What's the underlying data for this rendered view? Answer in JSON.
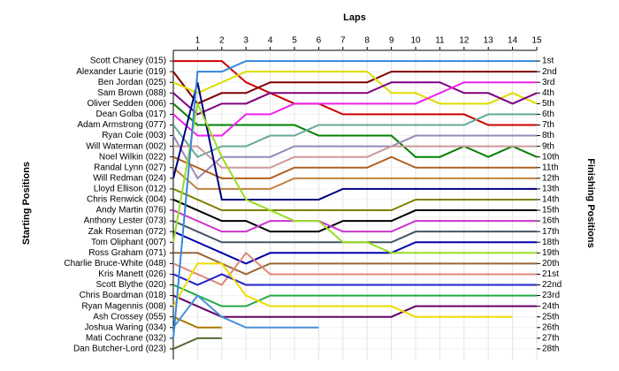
{
  "chart_data": {
    "type": "line",
    "title": "Laps",
    "ylabel": "Starting Positions",
    "y2label": "Finishing Positions",
    "x": [
      0,
      1,
      2,
      3,
      4,
      5,
      6,
      7,
      8,
      9,
      10,
      11,
      12,
      13,
      14,
      15
    ],
    "xlim": [
      0,
      15
    ],
    "xticks": [
      1,
      2,
      3,
      4,
      5,
      6,
      7,
      8,
      9,
      10,
      11,
      12,
      13,
      14,
      15
    ],
    "ylim": [
      29,
      0
    ],
    "yticks": [
      {
        "value": 1,
        "label": "1st"
      },
      {
        "value": 2,
        "label": "2nd"
      },
      {
        "value": 3,
        "label": "3rd"
      },
      {
        "value": 4,
        "label": "4th"
      },
      {
        "value": 5,
        "label": "5th"
      },
      {
        "value": 6,
        "label": "6th"
      },
      {
        "value": 7,
        "label": "7th"
      },
      {
        "value": 8,
        "label": "8th"
      },
      {
        "value": 9,
        "label": "9th"
      },
      {
        "value": 10,
        "label": "10th"
      },
      {
        "value": 11,
        "label": "11th"
      },
      {
        "value": 12,
        "label": "12th"
      },
      {
        "value": 13,
        "label": "13th"
      },
      {
        "value": 14,
        "label": "14th"
      },
      {
        "value": 15,
        "label": "15th"
      },
      {
        "value": 16,
        "label": "16th"
      },
      {
        "value": 17,
        "label": "17th"
      },
      {
        "value": 18,
        "label": "18th"
      },
      {
        "value": 19,
        "label": "19th"
      },
      {
        "value": 20,
        "label": "20th"
      },
      {
        "value": 21,
        "label": "21st"
      },
      {
        "value": 22,
        "label": "22nd"
      },
      {
        "value": 23,
        "label": "23rd"
      },
      {
        "value": 24,
        "label": "24th"
      },
      {
        "value": 25,
        "label": "25th"
      },
      {
        "value": 26,
        "label": "26th"
      },
      {
        "value": 27,
        "label": "27th"
      },
      {
        "value": 28,
        "label": "28th"
      }
    ],
    "grid": true,
    "series": [
      {
        "name": "Scott Chaney (015)",
        "color": "#cc0000",
        "values": [
          1,
          1,
          1,
          3,
          4,
          5,
          5,
          6,
          6,
          6,
          6,
          6,
          6,
          7,
          7,
          7
        ]
      },
      {
        "name": "Alexander Laurie (019)",
        "color": "#800000",
        "values": [
          2,
          5,
          4,
          4,
          3,
          3,
          3,
          3,
          3,
          2,
          2,
          2,
          2,
          2,
          2,
          2
        ]
      },
      {
        "name": "Ben Jordan (025)",
        "color": "#dddd00",
        "values": [
          3,
          4,
          3,
          2,
          2,
          2,
          2,
          2,
          2,
          4,
          4,
          5,
          5,
          5,
          4,
          5
        ]
      },
      {
        "name": "Sam Brown (088)",
        "color": "#800080",
        "values": [
          4,
          6,
          5,
          5,
          4,
          4,
          4,
          4,
          4,
          3,
          3,
          3,
          4,
          4,
          5,
          4
        ]
      },
      {
        "name": "Oliver Sedden (006)",
        "color": "#008000",
        "values": [
          5,
          7,
          7,
          7,
          7,
          7,
          8,
          8,
          8,
          8,
          10,
          10,
          9,
          10,
          9,
          10
        ]
      },
      {
        "name": "Dean Golba (017)",
        "color": "#ee22ee",
        "values": [
          6,
          8,
          8,
          6,
          6,
          5,
          5,
          5,
          5,
          5,
          5,
          4,
          3,
          3,
          3,
          3
        ]
      },
      {
        "name": "Adam Armstrong (077)",
        "color": "#66aa99",
        "values": [
          7,
          10,
          9,
          9,
          8,
          8,
          7,
          7,
          7,
          7,
          7,
          7,
          7,
          6,
          6,
          6
        ]
      },
      {
        "name": "Ryan Cole (003)",
        "color": "#9988bb",
        "values": [
          8,
          12,
          10,
          10,
          10,
          9,
          9,
          9,
          9,
          9,
          8,
          8,
          8,
          8,
          8,
          8
        ]
      },
      {
        "name": "Will Waterman (002)",
        "color": "#cc9999",
        "values": [
          9,
          9,
          11,
          11,
          11,
          10,
          10,
          10,
          10,
          9,
          9,
          9,
          9,
          9,
          9,
          9
        ]
      },
      {
        "name": "Noel Wilkin (022)",
        "color": "#b06020",
        "values": [
          10,
          11,
          12,
          12,
          12,
          11,
          11,
          11,
          11,
          10,
          11,
          11,
          11,
          11,
          11,
          11
        ]
      },
      {
        "name": "Randal Lynn (027)",
        "color": "#c08040",
        "values": [
          11,
          13,
          13,
          13,
          13,
          12,
          12,
          12,
          12,
          12,
          12,
          12,
          12,
          12,
          12,
          12
        ]
      },
      {
        "name": "Will Redman (024)",
        "color": "#000080",
        "values": [
          12,
          3,
          14,
          14,
          14,
          14,
          14,
          13,
          13,
          13,
          13,
          13,
          13,
          13,
          13,
          13
        ]
      },
      {
        "name": "Lloyd Ellison (012)",
        "color": "#808000",
        "values": [
          13,
          14,
          15,
          15,
          15,
          15,
          15,
          15,
          15,
          15,
          14,
          14,
          14,
          14,
          14,
          14
        ]
      },
      {
        "name": "Chris Renwick (004)",
        "color": "#000000",
        "values": [
          14,
          15,
          16,
          16,
          17,
          17,
          17,
          16,
          16,
          16,
          15,
          15,
          15,
          15,
          15,
          15
        ]
      },
      {
        "name": "Andy Martin (076)",
        "color": "#cc33cc",
        "values": [
          15,
          16,
          17,
          17,
          16,
          16,
          16,
          17,
          17,
          17,
          16,
          16,
          16,
          16,
          16,
          16
        ]
      },
      {
        "name": "Anthony Lester (073)",
        "color": "#445566",
        "values": [
          16,
          17,
          18,
          18,
          18,
          18,
          18,
          18,
          18,
          18,
          17,
          17,
          17,
          17,
          17,
          17
        ]
      },
      {
        "name": "Zak Roseman (072)",
        "color": "#0000aa",
        "values": [
          17,
          18,
          19,
          20,
          19,
          19,
          19,
          19,
          19,
          19,
          18,
          18,
          18,
          18,
          18,
          18
        ]
      },
      {
        "name": "Tom Oliphant (007)",
        "color": "#99dd22",
        "values": [
          18,
          5,
          10,
          14,
          15,
          16,
          16,
          18,
          18,
          19,
          19,
          19,
          19,
          19,
          19,
          19
        ]
      },
      {
        "name": "Ross Graham (071)",
        "color": "#996633",
        "values": [
          19,
          19,
          20,
          21,
          20,
          20,
          20,
          20,
          20,
          20,
          20,
          20,
          20,
          20,
          20,
          20
        ]
      },
      {
        "name": "Charlie Bruce-White (048)",
        "color": "#dd8877",
        "values": [
          20,
          21,
          22,
          19,
          21,
          21,
          21,
          21,
          21,
          21,
          21,
          21,
          21,
          21,
          21,
          21
        ]
      },
      {
        "name": "Kris Manett (026)",
        "color": "#2222cc",
        "values": [
          21,
          22,
          21,
          22,
          22,
          22,
          22,
          22,
          22,
          22,
          22,
          22,
          22,
          22,
          22,
          22
        ]
      },
      {
        "name": "Scott Blythe (020)",
        "color": "#22aa44",
        "values": [
          22,
          23,
          24,
          24,
          23,
          23,
          23,
          23,
          23,
          23,
          23,
          23,
          23,
          23,
          23,
          23
        ]
      },
      {
        "name": "Chris Boardman (018)",
        "color": "#660066",
        "values": [
          23,
          24,
          25,
          25,
          25,
          25,
          25,
          25,
          25,
          25,
          24,
          24,
          24,
          24,
          24,
          24
        ]
      },
      {
        "name": "Ryan Magennis (008)",
        "color": "#eedd00",
        "values": [
          24,
          20,
          20,
          23,
          24,
          24,
          24,
          24,
          24,
          24,
          25,
          25,
          25,
          25,
          25,
          null
        ]
      },
      {
        "name": "Ash Crossey (055)",
        "color": "#aa7700",
        "values": [
          25,
          26,
          26,
          null,
          null,
          null,
          null,
          null,
          null,
          null,
          null,
          null,
          null,
          null,
          null,
          null
        ]
      },
      {
        "name": "Joshua Waring (034)",
        "color": "#4a90d9",
        "values": [
          26,
          23,
          25,
          26,
          26,
          26,
          26,
          null,
          null,
          null,
          null,
          null,
          null,
          null,
          null,
          null
        ]
      },
      {
        "name": "Mati Cochrane (032)",
        "color": "#3388dd",
        "values": [
          27,
          2,
          2,
          1,
          1,
          1,
          1,
          1,
          1,
          1,
          1,
          1,
          1,
          1,
          1,
          1
        ]
      },
      {
        "name": "Dan Butcher-Lord (023)",
        "color": "#556b2f",
        "values": [
          28,
          27,
          27,
          null,
          null,
          null,
          null,
          null,
          null,
          null,
          null,
          null,
          null,
          null,
          null,
          null
        ]
      }
    ]
  }
}
